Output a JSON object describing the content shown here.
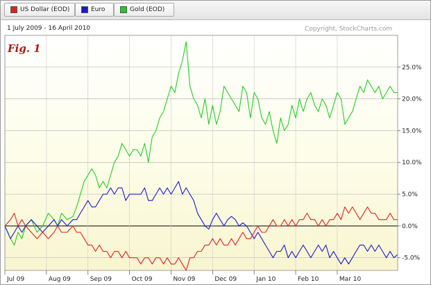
{
  "legend": [
    {
      "label": "US Dollar (EOD)",
      "color": "#e02020"
    },
    {
      "label": "Euro",
      "color": "#1a1acc"
    },
    {
      "label": "Gold (EOD)",
      "color": "#22cc22"
    }
  ],
  "date_range": "1 July 2009 - 16 April 2010",
  "copyright": "Copyright, StockCharts.com",
  "fig_label": "Fig. 1",
  "chart_data": {
    "type": "line",
    "ylim": [
      -7,
      30
    ],
    "yticks": [
      25,
      20,
      15,
      10,
      5,
      0,
      -5
    ],
    "ytick_labels": [
      "25.0%",
      "20.0%",
      "15.0%",
      "10.0%",
      "5.0%",
      "0.0%",
      "-5.0%"
    ],
    "xlim": [
      0,
      208
    ],
    "xticks": [
      0,
      22,
      44,
      66,
      88,
      110,
      132,
      154,
      176
    ],
    "xtick_labels": [
      "Jul 09",
      "Aug 09",
      "Sep 09",
      "Oct 09",
      "Nov 09",
      "Dec 09",
      "Jan 10",
      "Feb 10",
      "Mar 10"
    ],
    "grid": true,
    "baseline": 0,
    "series": [
      {
        "name": "Gold (EOD)",
        "color": "#22cc22",
        "x": [
          0,
          3,
          5,
          7,
          9,
          11,
          14,
          17,
          20,
          23,
          26,
          28,
          30,
          33,
          36,
          38,
          40,
          42,
          44,
          46,
          48,
          50,
          52,
          54,
          56,
          58,
          60,
          62,
          64,
          66,
          68,
          70,
          72,
          74,
          76,
          78,
          80,
          82,
          84,
          86,
          88,
          90,
          92,
          94,
          96,
          98,
          100,
          102,
          104,
          106,
          108,
          110,
          112,
          114,
          116,
          118,
          120,
          122,
          124,
          126,
          128,
          130,
          132,
          134,
          136,
          138,
          140,
          142,
          144,
          146,
          148,
          150,
          152,
          154,
          156,
          158,
          160,
          162,
          164,
          166,
          168,
          170,
          172,
          174,
          176,
          178,
          180,
          182,
          184,
          186,
          188,
          190,
          192,
          194,
          196,
          198,
          200,
          202,
          204,
          206,
          208
        ],
        "y": [
          0,
          -2,
          -3,
          -1,
          -2,
          0,
          1,
          -1,
          0,
          2,
          1,
          0,
          2,
          1,
          1.5,
          3,
          5,
          7,
          8,
          9,
          8,
          6,
          7,
          6,
          8,
          10,
          11,
          13,
          12,
          11,
          12,
          12,
          11,
          13,
          10,
          14,
          15,
          17,
          18,
          20,
          22,
          21,
          24,
          26,
          29,
          22,
          20,
          19,
          17,
          20,
          16,
          19,
          16,
          18,
          22,
          21,
          20,
          19,
          18,
          22,
          21,
          17,
          21,
          20,
          17,
          16,
          18,
          15,
          13,
          17,
          15,
          16,
          19,
          17,
          20,
          18,
          20,
          21,
          19,
          18,
          20,
          19,
          17,
          19,
          21,
          20,
          16,
          17,
          18,
          20,
          22,
          21,
          23,
          22,
          21,
          22,
          20,
          21,
          22,
          21,
          21
        ],
        "legend": true
      },
      {
        "name": "Euro",
        "color": "#1a1acc",
        "x": [
          0,
          3,
          5,
          7,
          9,
          11,
          14,
          17,
          20,
          23,
          26,
          28,
          30,
          33,
          36,
          38,
          40,
          42,
          44,
          46,
          48,
          50,
          52,
          54,
          56,
          58,
          60,
          62,
          64,
          66,
          68,
          70,
          72,
          74,
          76,
          78,
          80,
          82,
          84,
          86,
          88,
          90,
          92,
          94,
          96,
          98,
          100,
          102,
          104,
          106,
          108,
          110,
          112,
          114,
          116,
          118,
          120,
          122,
          124,
          126,
          128,
          130,
          132,
          134,
          136,
          138,
          140,
          142,
          144,
          146,
          148,
          150,
          152,
          154,
          156,
          158,
          160,
          162,
          164,
          166,
          168,
          170,
          172,
          174,
          176,
          178,
          180,
          182,
          184,
          186,
          188,
          190,
          192,
          194,
          196,
          198,
          200,
          202,
          204,
          206,
          208
        ],
        "y": [
          0,
          -2,
          -1,
          0,
          -1,
          0,
          1,
          0,
          -1,
          0,
          1,
          0,
          1,
          0,
          1,
          1,
          2,
          3,
          4,
          3,
          3,
          4,
          5,
          5,
          6,
          5,
          6,
          6,
          4,
          5,
          5,
          5,
          5,
          6,
          4,
          4,
          5,
          6,
          5,
          6,
          5,
          6,
          7,
          5,
          6,
          5,
          4,
          2,
          1,
          0,
          -0.5,
          1,
          2,
          1,
          0,
          1,
          1.5,
          1,
          0,
          0.5,
          0,
          -1,
          -2,
          -1,
          -2,
          -3,
          -4,
          -5,
          -4,
          -4,
          -3,
          -5,
          -4,
          -5,
          -4,
          -3,
          -4,
          -5,
          -4,
          -3,
          -4,
          -3,
          -5,
          -4,
          -5,
          -6,
          -5,
          -6,
          -5,
          -4,
          -3,
          -3,
          -4,
          -3,
          -4,
          -3,
          -4,
          -5,
          -4,
          -5,
          -4.5
        ],
        "legend": true
      },
      {
        "name": "US Dollar (EOD)",
        "color": "#e02020",
        "x": [
          0,
          3,
          5,
          7,
          9,
          11,
          14,
          17,
          20,
          23,
          26,
          28,
          30,
          33,
          36,
          38,
          40,
          42,
          44,
          46,
          48,
          50,
          52,
          54,
          56,
          58,
          60,
          62,
          64,
          66,
          68,
          70,
          72,
          74,
          76,
          78,
          80,
          82,
          84,
          86,
          88,
          90,
          92,
          94,
          96,
          98,
          100,
          102,
          104,
          106,
          108,
          110,
          112,
          114,
          116,
          118,
          120,
          122,
          124,
          126,
          128,
          130,
          132,
          134,
          136,
          138,
          140,
          142,
          144,
          146,
          148,
          150,
          152,
          154,
          156,
          158,
          160,
          162,
          164,
          166,
          168,
          170,
          172,
          174,
          176,
          178,
          180,
          182,
          184,
          186,
          188,
          190,
          192,
          194,
          196,
          198,
          200,
          202,
          204,
          206,
          208
        ],
        "y": [
          0,
          1,
          2,
          0,
          1,
          0,
          -1,
          -2,
          -1,
          -2,
          -1,
          0,
          -1,
          -1,
          0,
          -1,
          -1,
          -2,
          -3,
          -3,
          -4,
          -3,
          -4,
          -4,
          -5,
          -4,
          -4,
          -5,
          -4,
          -5,
          -5,
          -5,
          -6,
          -5,
          -5,
          -6,
          -5,
          -5,
          -6,
          -5,
          -6,
          -6,
          -5,
          -6,
          -7,
          -5,
          -5,
          -4,
          -4,
          -3,
          -3,
          -2,
          -3,
          -2,
          -3,
          -3,
          -2,
          -3,
          -2,
          -1,
          -2,
          -2,
          -1,
          0,
          -1,
          -1,
          0,
          1,
          0,
          0,
          1,
          0,
          1,
          0,
          1,
          1,
          2,
          1,
          1,
          0,
          1,
          0,
          1,
          1,
          2,
          1,
          3,
          2,
          3,
          2,
          1,
          2,
          3,
          2,
          2,
          1,
          1,
          1,
          2,
          1,
          1
        ],
        "legend": true
      }
    ]
  }
}
